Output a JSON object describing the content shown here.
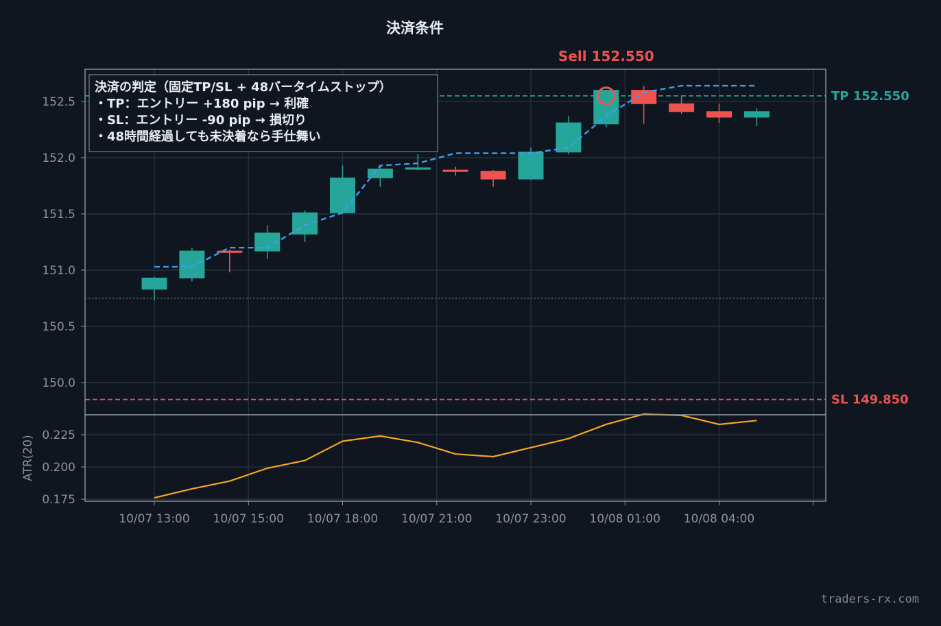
{
  "chart_data": [
    {
      "type": "candlestick",
      "title": "決済条件",
      "ylim": [
        149.7,
        152.8
      ],
      "yticks": [
        150.0,
        150.5,
        151.0,
        151.5,
        152.0,
        152.5
      ],
      "ytick_labels": [
        "150.0",
        "150.5",
        "151.0",
        "151.5",
        "152.0",
        "152.5"
      ],
      "xtick_labels": [
        "10/07 13:00",
        "10/07 15:00",
        "10/07 18:00",
        "10/07 21:00",
        "10/07 23:00",
        "10/08 01:00",
        "10/08 04:00"
      ],
      "grid": true,
      "candles": [
        {
          "o": 150.83,
          "h": 150.94,
          "l": 150.73,
          "c": 150.93
        },
        {
          "o": 150.93,
          "h": 151.2,
          "l": 150.9,
          "c": 151.17
        },
        {
          "o": 151.17,
          "h": 151.18,
          "l": 150.98,
          "c": 151.16
        },
        {
          "o": 151.17,
          "h": 151.4,
          "l": 151.1,
          "c": 151.33
        },
        {
          "o": 151.32,
          "h": 151.53,
          "l": 151.25,
          "c": 151.51
        },
        {
          "o": 151.51,
          "h": 151.93,
          "l": 151.51,
          "c": 151.82
        },
        {
          "o": 151.82,
          "h": 151.93,
          "l": 151.74,
          "c": 151.9
        },
        {
          "o": 151.9,
          "h": 152.03,
          "l": 151.89,
          "c": 151.91
        },
        {
          "o": 151.89,
          "h": 151.92,
          "l": 151.84,
          "c": 151.88
        },
        {
          "o": 151.88,
          "h": 151.89,
          "l": 151.74,
          "c": 151.81
        },
        {
          "o": 151.81,
          "h": 152.09,
          "l": 151.8,
          "c": 152.05
        },
        {
          "o": 152.05,
          "h": 152.37,
          "l": 152.03,
          "c": 152.31
        },
        {
          "o": 152.3,
          "h": 152.6,
          "l": 152.27,
          "c": 152.6
        },
        {
          "o": 152.6,
          "h": 152.64,
          "l": 152.3,
          "c": 152.48
        },
        {
          "o": 152.48,
          "h": 152.55,
          "l": 152.39,
          "c": 152.41
        },
        {
          "o": 152.41,
          "h": 152.48,
          "l": 152.31,
          "c": 152.36
        },
        {
          "o": 152.36,
          "h": 152.44,
          "l": 152.28,
          "c": 152.41
        }
      ],
      "line_series": {
        "values": [
          151.03,
          151.03,
          151.2,
          151.2,
          151.4,
          151.51,
          151.93,
          151.95,
          152.04,
          152.04,
          152.04,
          152.09,
          152.37,
          152.58,
          152.64,
          152.64,
          152.64
        ],
        "color": "#3d9df0",
        "style": "dashed"
      },
      "entry_level": 150.75,
      "tp": {
        "value": 152.55,
        "label": "TP 152.550",
        "color": "#26a69a"
      },
      "sl": {
        "value": 149.85,
        "label": "SL 149.850",
        "color": "#ef5350"
      },
      "entry_marker": {
        "index": 12,
        "value": 152.55,
        "label": "Sell 152.550",
        "color": "#ef5350"
      },
      "legend_lines": [
        "決済の判定（固定TP/SL + 48バータイムストップ）",
        "・TP：エントリー +180 pip → 利確",
        "・SL：エントリー -90 pip → 損切り",
        "・48時間経過しても未決着なら手仕舞い"
      ],
      "up_color": "#26a69a",
      "down_color": "#ef5350"
    },
    {
      "type": "line",
      "ylabel": "ATR(20)",
      "ylim": [
        0.172,
        0.256
      ],
      "yticks": [
        0.175,
        0.2,
        0.225
      ],
      "ytick_labels": [
        "0.175",
        "0.200",
        "0.225"
      ],
      "values": [
        0.176,
        0.183,
        0.189,
        0.199,
        0.205,
        0.22,
        0.224,
        0.219,
        0.21,
        0.208,
        0.215,
        0.222,
        0.233,
        0.241,
        0.24,
        0.233,
        0.236
      ],
      "color": "#f6a623"
    }
  ],
  "watermark": "traders-rx.com"
}
